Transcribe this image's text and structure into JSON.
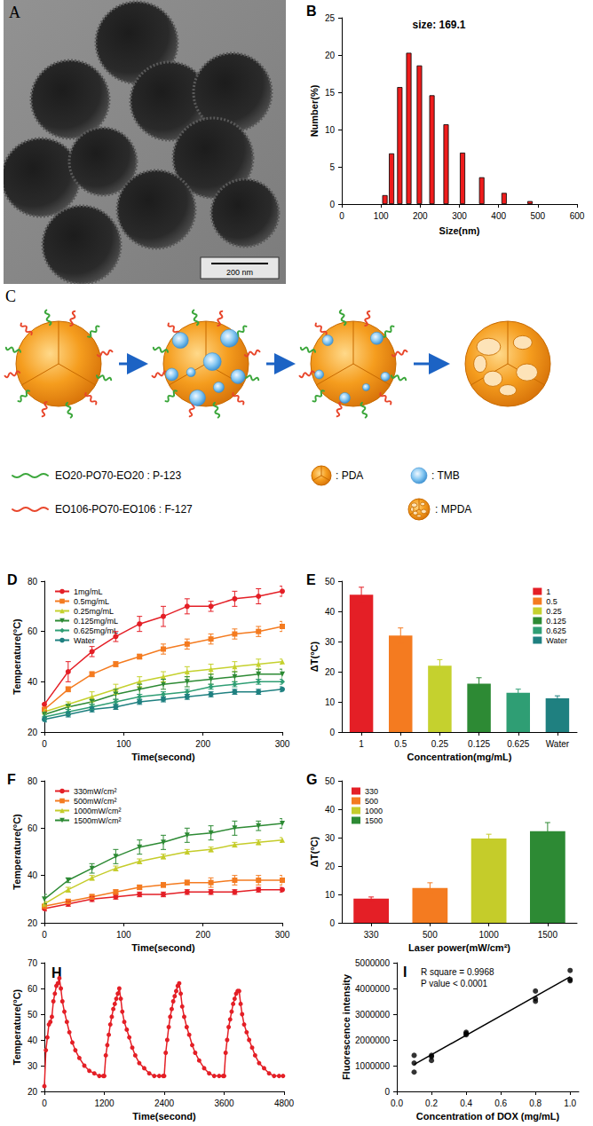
{
  "image": {
    "panel_label": "A",
    "scale_bar": "200 nm"
  },
  "diagram": {
    "panel_label": "C",
    "key": [
      "EO20-PO70-EO20 : P-123",
      "EO106-PO70-EO106 : F-127",
      ": PDA",
      ": TMB",
      ": MPDA"
    ]
  },
  "chart_data": [
    {
      "panel_label": "B",
      "type": "bar",
      "title": "size: 169.1",
      "x_label": "Size(nm)",
      "y_label": "Number(%)",
      "x": [
        110,
        127,
        148,
        171,
        198,
        230,
        266,
        308,
        357,
        414,
        480
      ],
      "values": [
        1.2,
        6.8,
        15.7,
        20.3,
        18.6,
        14.6,
        10.7,
        6.9,
        3.6,
        1.5,
        0.4
      ],
      "color": "#ee1c1c",
      "xlim": [
        0,
        600
      ],
      "xticks": [
        0,
        100,
        200,
        300,
        400,
        500,
        600
      ],
      "ylim": [
        0,
        25
      ],
      "yticks": [
        0,
        5,
        10,
        15,
        20,
        25
      ],
      "grid": false
    },
    {
      "panel_label": "D",
      "type": "line",
      "x_label": "Time(second)",
      "y_label": "Temperature(°C)",
      "x": [
        0,
        30,
        60,
        90,
        120,
        150,
        180,
        210,
        240,
        270,
        300
      ],
      "series": [
        {
          "name": "1mg/mL",
          "color": "#e41f26",
          "marker": "circle",
          "values": [
            31,
            44,
            52,
            58,
            63,
            66,
            70,
            70,
            73,
            74,
            76
          ],
          "errors": [
            1,
            4,
            2,
            2,
            3,
            4,
            3,
            2,
            3,
            3,
            2
          ]
        },
        {
          "name": "0.5mg/mL",
          "color": "#f47b20",
          "marker": "square",
          "values": [
            29,
            37,
            43,
            47,
            50,
            53,
            55,
            57,
            59,
            60,
            62
          ],
          "errors": [
            1,
            1,
            1,
            1,
            1,
            2,
            2,
            2,
            2,
            2,
            2
          ]
        },
        {
          "name": "0.25mg/mL",
          "color": "#c5d12e",
          "marker": "triangle",
          "values": [
            28,
            31,
            34,
            37,
            40,
            42,
            44,
            45,
            46,
            47,
            48
          ],
          "errors": [
            1,
            1,
            2,
            2,
            2,
            2,
            2,
            2,
            2,
            2,
            1
          ]
        },
        {
          "name": "0.125mg/mL",
          "color": "#2d8a34",
          "marker": "triangle-down",
          "values": [
            27,
            30,
            32,
            35,
            37,
            39,
            40,
            41,
            42,
            43,
            43
          ],
          "errors": [
            1,
            1,
            1,
            2,
            2,
            2,
            2,
            2,
            2,
            2,
            2
          ]
        },
        {
          "name": "0.625mg/mL",
          "color": "#2f9e74",
          "marker": "diamond",
          "values": [
            26,
            28,
            30,
            32,
            34,
            35,
            36,
            38,
            39,
            40,
            40
          ],
          "errors": [
            1,
            1,
            1,
            1,
            1,
            1,
            1,
            1,
            1,
            1,
            1
          ]
        },
        {
          "name": "Water",
          "color": "#1f8080",
          "marker": "circle",
          "values": [
            25,
            27,
            29,
            30,
            32,
            33,
            34,
            35,
            36,
            36,
            37
          ],
          "errors": [
            1,
            1,
            1,
            1,
            1,
            1,
            1,
            1,
            1,
            1,
            1
          ]
        }
      ],
      "xlim": [
        0,
        300
      ],
      "xticks": [
        0,
        100,
        200,
        300
      ],
      "ylim": [
        20,
        80
      ],
      "yticks": [
        20,
        40,
        60,
        80
      ],
      "legend": "upper left",
      "grid": false
    },
    {
      "panel_label": "E",
      "type": "bar",
      "x_label": "Concentration(mg/mL)",
      "y_label": "ΔT(°C)",
      "categories": [
        "1",
        "0.5",
        "0.25",
        "0.125",
        "0.625",
        "Water"
      ],
      "values": [
        45.5,
        32,
        22,
        16,
        13,
        11.2
      ],
      "errors": [
        2.5,
        2.5,
        2,
        2,
        1.2,
        0.8
      ],
      "colors": [
        "#e41f26",
        "#f47b20",
        "#c5d12e",
        "#2d8a34",
        "#2f9e74",
        "#1f8080"
      ],
      "ylim": [
        0,
        50
      ],
      "yticks": [
        0,
        10,
        20,
        30,
        40,
        50
      ],
      "legend": "upper right",
      "grid": false
    },
    {
      "panel_label": "F",
      "type": "line",
      "x_label": "Time(second)",
      "y_label": "Temperature(°C)",
      "x": [
        0,
        30,
        60,
        90,
        120,
        150,
        180,
        210,
        240,
        270,
        300
      ],
      "series": [
        {
          "name": "330mW/cm²",
          "color": "#e41f26",
          "marker": "circle",
          "values": [
            26,
            28,
            30,
            31,
            32,
            32,
            33,
            33,
            33,
            34,
            34
          ],
          "errors": [
            1,
            1,
            1,
            1,
            1,
            1,
            1,
            1,
            1,
            1,
            1
          ]
        },
        {
          "name": "500mW/cm²",
          "color": "#f47b20",
          "marker": "square",
          "values": [
            27,
            29,
            31,
            33,
            35,
            36,
            37,
            37,
            38,
            38,
            38
          ],
          "errors": [
            1,
            1,
            1,
            1,
            1,
            1,
            1,
            2,
            2,
            2,
            2
          ]
        },
        {
          "name": "1000mW/cm²",
          "color": "#c5cc2a",
          "marker": "triangle",
          "values": [
            28,
            34,
            39,
            43,
            46,
            48,
            50,
            51,
            53,
            54,
            55
          ],
          "errors": [
            1,
            1,
            1,
            1,
            1,
            1,
            1,
            1,
            1,
            1,
            1
          ]
        },
        {
          "name": "1500mW/cm²",
          "color": "#2d8a34",
          "marker": "triangle-down",
          "values": [
            30,
            38,
            43,
            48,
            52,
            54,
            57,
            58,
            60,
            61,
            62
          ],
          "errors": [
            2,
            1,
            2,
            3,
            3,
            3,
            3,
            3,
            3,
            2,
            2
          ]
        }
      ],
      "xlim": [
        0,
        300
      ],
      "xticks": [
        0,
        100,
        200,
        300
      ],
      "ylim": [
        20,
        80
      ],
      "yticks": [
        20,
        40,
        60,
        80
      ],
      "legend": "upper left",
      "grid": false
    },
    {
      "panel_label": "G",
      "type": "bar",
      "x_label": "Laser power(mW/cm²)",
      "y_label": "ΔT(°C)",
      "categories": [
        "330",
        "500",
        "1000",
        "1500"
      ],
      "values": [
        8.5,
        12.3,
        29.7,
        32.3
      ],
      "errors": [
        0.6,
        1.8,
        1.5,
        3
      ],
      "colors": [
        "#e41f26",
        "#f47b20",
        "#c5cc2a",
        "#2d8a34"
      ],
      "ylim": [
        0,
        50
      ],
      "yticks": [
        0,
        10,
        20,
        30,
        40,
        50
      ],
      "legend": "upper left",
      "grid": false
    },
    {
      "panel_label": "H",
      "type": "line",
      "x_label": "Time(second)",
      "y_label": "Temperature(°C)",
      "x": [
        0,
        30,
        60,
        90,
        120,
        150,
        180,
        210,
        240,
        270,
        300,
        330,
        360,
        400,
        450,
        500,
        560,
        620,
        700,
        800,
        900,
        1000,
        1100,
        1180,
        1200,
        1230,
        1260,
        1290,
        1320,
        1350,
        1380,
        1410,
        1440,
        1470,
        1500,
        1530,
        1560,
        1600,
        1650,
        1700,
        1760,
        1820,
        1900,
        2000,
        2100,
        2200,
        2300,
        2380,
        2400,
        2430,
        2460,
        2490,
        2520,
        2550,
        2580,
        2610,
        2640,
        2670,
        2700,
        2730,
        2760,
        2800,
        2850,
        2900,
        2960,
        3020,
        3100,
        3200,
        3300,
        3400,
        3500,
        3580,
        3600,
        3630,
        3660,
        3690,
        3720,
        3750,
        3780,
        3810,
        3840,
        3870,
        3900,
        3930,
        3960,
        4000,
        4050,
        4100,
        4160,
        4220,
        4300,
        4400,
        4500,
        4600,
        4700,
        4780
      ],
      "values": [
        22,
        36,
        41,
        46,
        47,
        49,
        55,
        58,
        61,
        62,
        64,
        60,
        55,
        51,
        47,
        43,
        39,
        36,
        33,
        30,
        28,
        27,
        26,
        26,
        26,
        34,
        38,
        42,
        46,
        49,
        52,
        54,
        56,
        58,
        60,
        56,
        51,
        47,
        44,
        41,
        37,
        34,
        31,
        29,
        27,
        26,
        26,
        26,
        26,
        35,
        40,
        45,
        49,
        52,
        55,
        57,
        59,
        61,
        62,
        58,
        53,
        49,
        45,
        42,
        38,
        35,
        32,
        29,
        27,
        26,
        26,
        26,
        26,
        35,
        40,
        45,
        48,
        51,
        54,
        56,
        58,
        59,
        59,
        54,
        50,
        46,
        43,
        40,
        37,
        34,
        31,
        29,
        27,
        26,
        26,
        26
      ],
      "color": "#e41f26",
      "marker": "circle",
      "xlim": [
        0,
        4800
      ],
      "xticks": [
        0,
        1200,
        2400,
        3600,
        4800
      ],
      "ylim": [
        20,
        70
      ],
      "yticks": [
        20,
        30,
        40,
        50,
        60,
        70
      ],
      "grid": false
    },
    {
      "panel_label": "I",
      "type": "scatter",
      "x_label": "Concentration of DOX (mg/mL)",
      "y_label": "Fluorescence intensity",
      "x": [
        0.1,
        0.1,
        0.1,
        0.2,
        0.2,
        0.2,
        0.4,
        0.4,
        0.4,
        0.8,
        0.8,
        0.8,
        1.0,
        1.0,
        1.0
      ],
      "values": [
        1400000,
        1100000,
        750000,
        1400000,
        1350000,
        1200000,
        2300000,
        2250000,
        2200000,
        3900000,
        3600000,
        3500000,
        4700000,
        4350000,
        4300000
      ],
      "color": "#000000",
      "marker": "circle",
      "fit": {
        "x": [
          0.1,
          1.0
        ],
        "values": [
          1050000,
          4450000
        ]
      },
      "annotations": [
        "R square = 0.9968",
        "P value < 0.0001"
      ],
      "xlim": [
        0,
        1.05
      ],
      "xticks": [
        {
          "value": 0,
          "label": "0.0"
        },
        0.2,
        0.4,
        0.6,
        0.8,
        {
          "value": 1,
          "label": "1.0"
        }
      ],
      "ylim": [
        0,
        5000000
      ],
      "yticks": [
        0,
        1000000,
        2000000,
        3000000,
        4000000,
        5000000
      ],
      "grid": false
    }
  ]
}
